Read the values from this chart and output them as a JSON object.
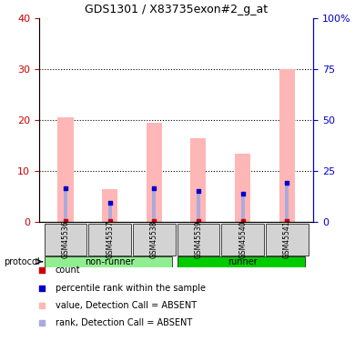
{
  "title": "GDS1301 / X83735exon#2_g_at",
  "samples": [
    "GSM45536",
    "GSM45537",
    "GSM45538",
    "GSM45539",
    "GSM45540",
    "GSM45541"
  ],
  "groups": [
    "non-runner",
    "non-runner",
    "non-runner",
    "runner",
    "runner",
    "runner"
  ],
  "group_colors": {
    "non-runner": "#90EE90",
    "runner": "#00CC00"
  },
  "bar_values": [
    20.5,
    6.5,
    19.5,
    16.5,
    13.5,
    30.0
  ],
  "rank_values": [
    16.5,
    9.5,
    16.5,
    15.5,
    14.0,
    19.5
  ],
  "left_ylim": [
    0,
    40
  ],
  "right_ylim": [
    0,
    100
  ],
  "left_yticks": [
    0,
    10,
    20,
    30,
    40
  ],
  "right_yticks": [
    0,
    25,
    50,
    75,
    100
  ],
  "right_yticklabels": [
    "0",
    "25",
    "50",
    "75",
    "100%"
  ],
  "bar_color": "#FFB6B6",
  "rank_color": "#AAAADD",
  "dot_color_red": "#CC0000",
  "dot_color_blue": "#0000CC",
  "count_dot_values": [
    0.3,
    0.3,
    0.3,
    0.3,
    0.3,
    0.3
  ],
  "protocol_label": "protocol",
  "grid_color": "#000000",
  "dotted_line_color": "#000000",
  "left_axis_color": "#CC0000",
  "right_axis_color": "#0000CC"
}
